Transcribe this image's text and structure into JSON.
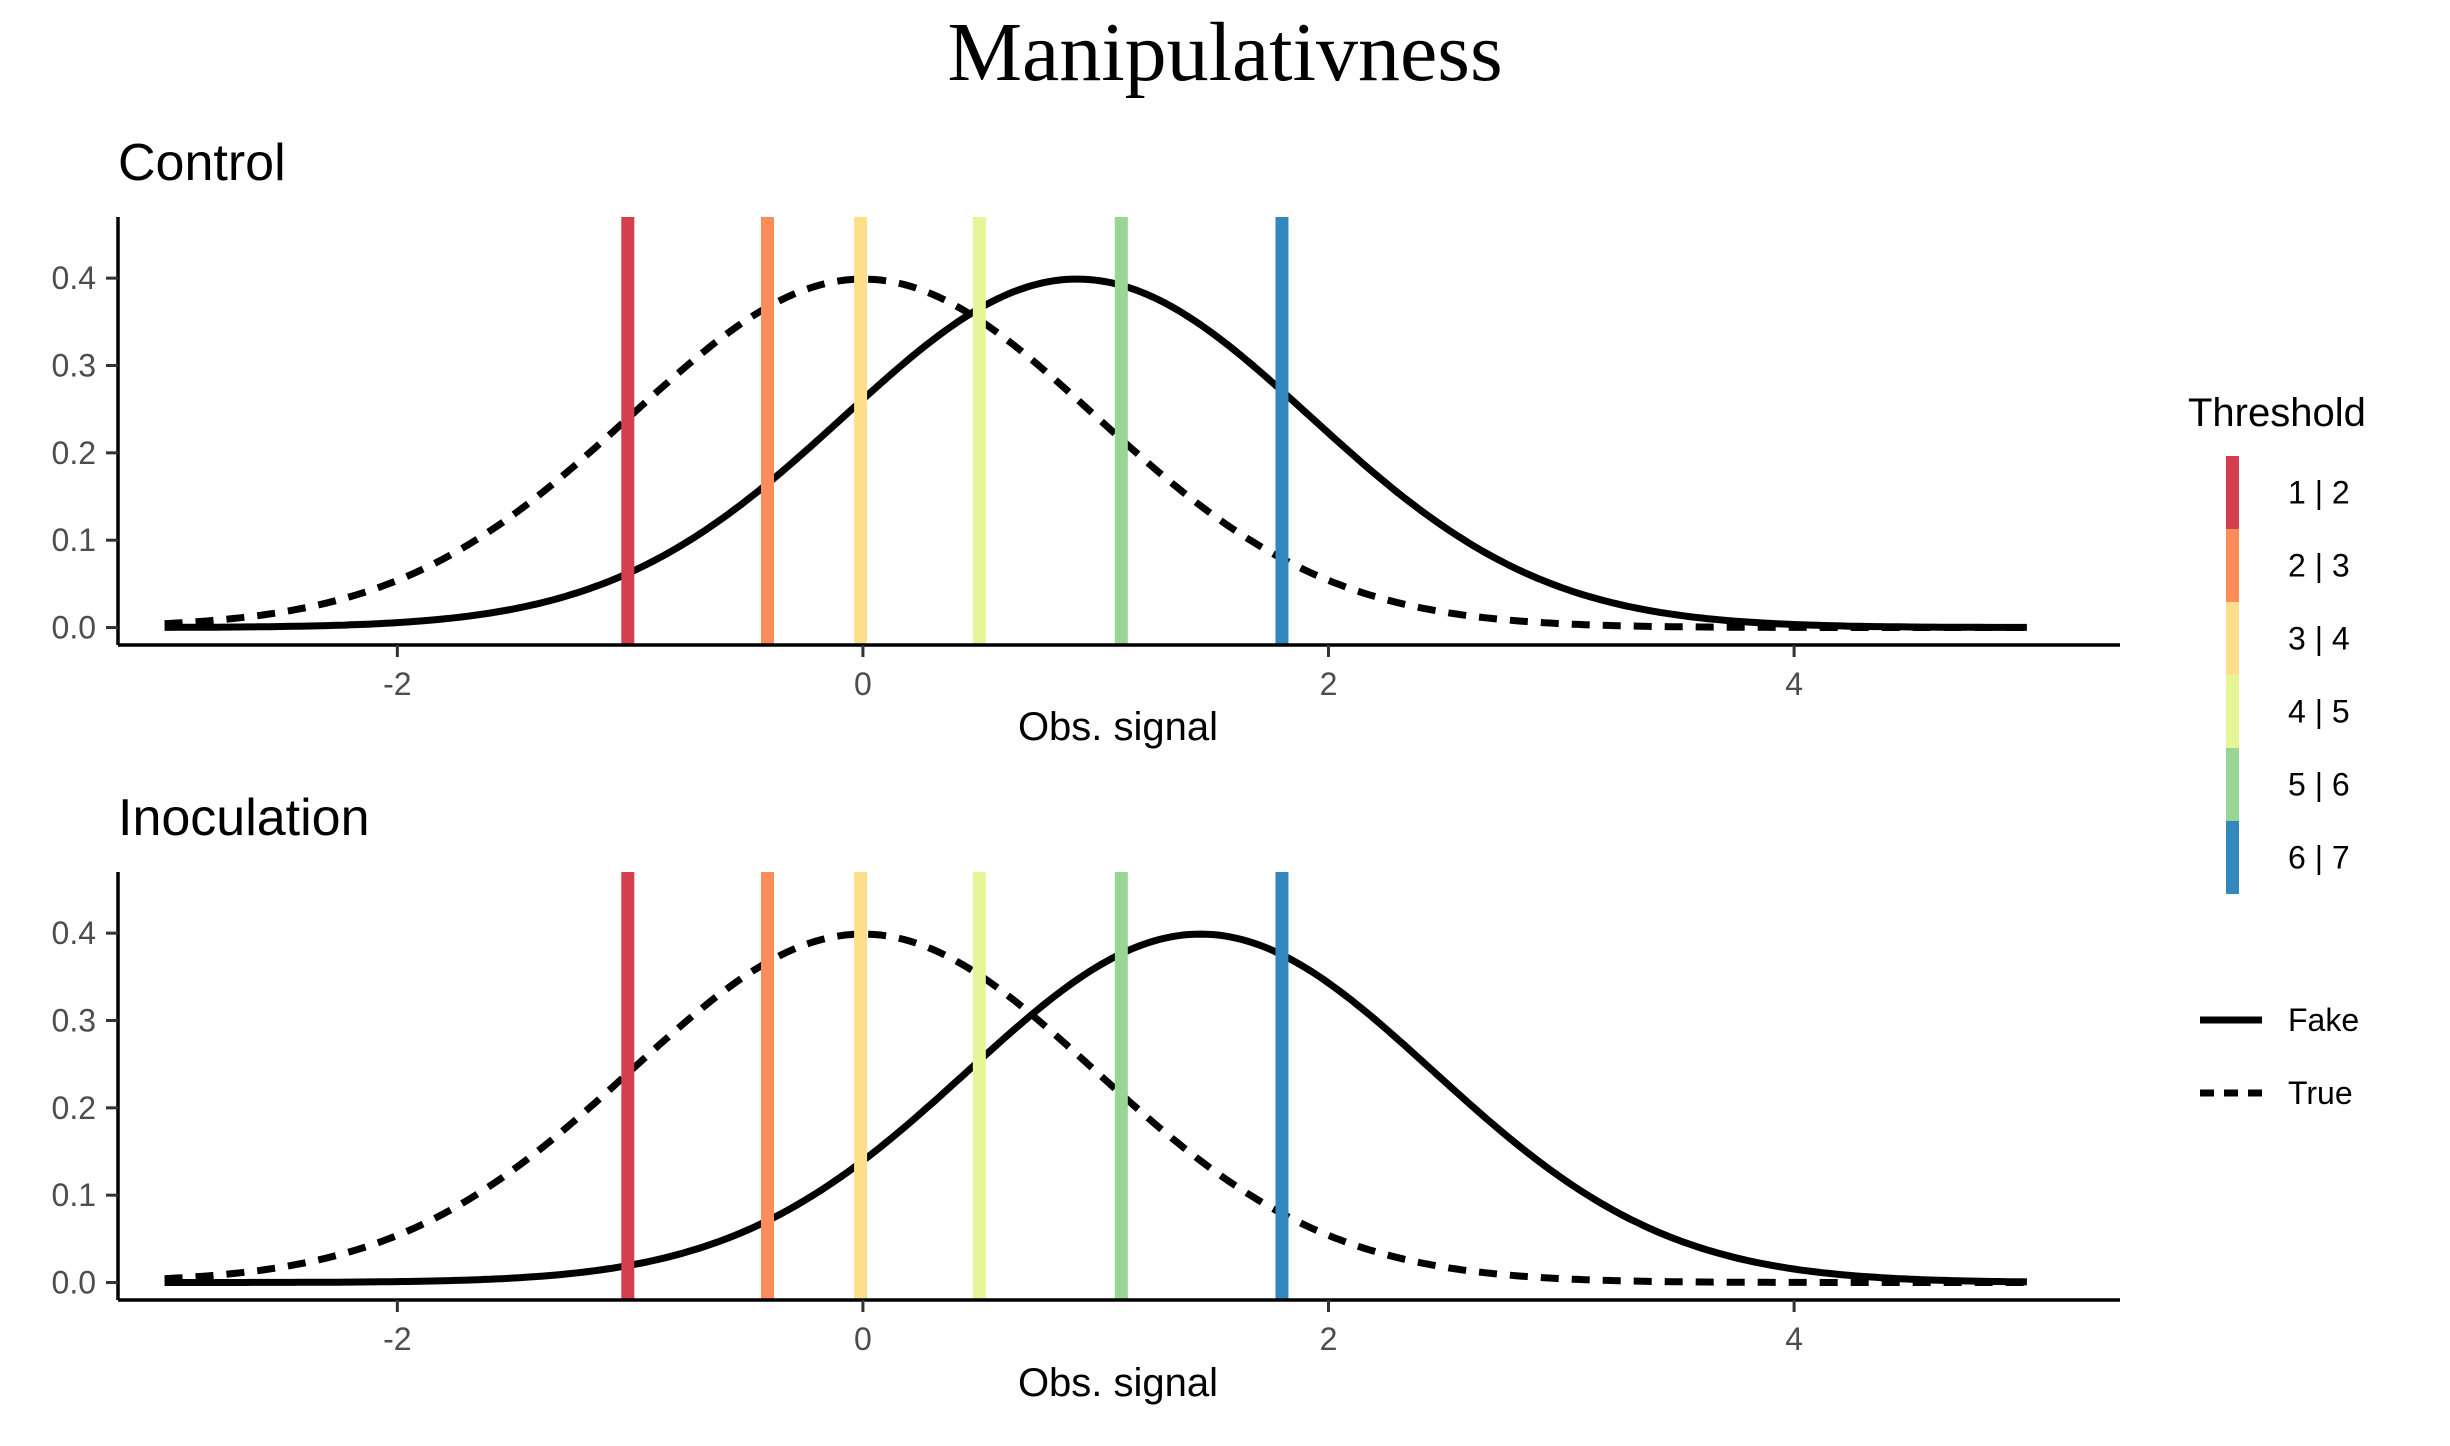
{
  "title": "Manipulativness",
  "colors": {
    "thresholds": [
      "#D53E4F",
      "#FC8D59",
      "#FEE08B",
      "#E6F598",
      "#99D594",
      "#3288BD"
    ],
    "curves": "#000000"
  },
  "legend": {
    "threshold_title": "Threshold",
    "threshold_labels": [
      "1 | 2",
      "2 | 3",
      "3 | 4",
      "4 | 5",
      "5 | 6",
      "6 | 7"
    ],
    "curve_labels": [
      "Fake",
      "True"
    ]
  },
  "chart_data": [
    {
      "type": "line",
      "title": "Control",
      "xlabel": "Obs. signal",
      "ylabel": "",
      "xlim": [
        -3.2,
        5.4
      ],
      "ylim": [
        -0.02,
        0.47
      ],
      "x_ticks": [
        -2,
        0,
        2,
        4
      ],
      "y_ticks": [
        0.0,
        0.1,
        0.2,
        0.3,
        0.4
      ],
      "x_tick_labels": [
        "-2",
        "0",
        "2",
        "4"
      ],
      "y_tick_labels": [
        "0.0",
        "0.1",
        "0.2",
        "0.3",
        "0.4"
      ],
      "thresholds": [
        {
          "label": "1 | 2",
          "x": -1.01
        },
        {
          "label": "2 | 3",
          "x": -0.41
        },
        {
          "label": "3 | 4",
          "x": -0.01
        },
        {
          "label": "4 | 5",
          "x": 0.5
        },
        {
          "label": "5 | 6",
          "x": 1.11
        },
        {
          "label": "6 | 7",
          "x": 1.8
        }
      ],
      "series": [
        {
          "name": "Fake",
          "distribution": "normal",
          "mean": 0.92,
          "sd": 1,
          "x_range": [
            -3,
            5
          ],
          "linestyle": "solid"
        },
        {
          "name": "True",
          "distribution": "normal",
          "mean": 0,
          "sd": 1,
          "x_range": [
            -3,
            5
          ],
          "linestyle": "dashed"
        }
      ]
    },
    {
      "type": "line",
      "title": "Inoculation",
      "xlabel": "Obs. signal",
      "ylabel": "",
      "xlim": [
        -3.2,
        5.4
      ],
      "ylim": [
        -0.02,
        0.47
      ],
      "x_ticks": [
        -2,
        0,
        2,
        4
      ],
      "y_ticks": [
        0.0,
        0.1,
        0.2,
        0.3,
        0.4
      ],
      "x_tick_labels": [
        "-2",
        "0",
        "2",
        "4"
      ],
      "y_tick_labels": [
        "0.0",
        "0.1",
        "0.2",
        "0.3",
        "0.4"
      ],
      "thresholds": [
        {
          "label": "1 | 2",
          "x": -1.01
        },
        {
          "label": "2 | 3",
          "x": -0.41
        },
        {
          "label": "3 | 4",
          "x": -0.01
        },
        {
          "label": "4 | 5",
          "x": 0.5
        },
        {
          "label": "5 | 6",
          "x": 1.11
        },
        {
          "label": "6 | 7",
          "x": 1.8
        }
      ],
      "series": [
        {
          "name": "Fake",
          "distribution": "normal",
          "mean": 1.45,
          "sd": 1,
          "x_range": [
            -3,
            5
          ],
          "linestyle": "solid"
        },
        {
          "name": "True",
          "distribution": "normal",
          "mean": 0,
          "sd": 1,
          "x_range": [
            -3,
            5
          ],
          "linestyle": "dashed"
        }
      ]
    }
  ]
}
